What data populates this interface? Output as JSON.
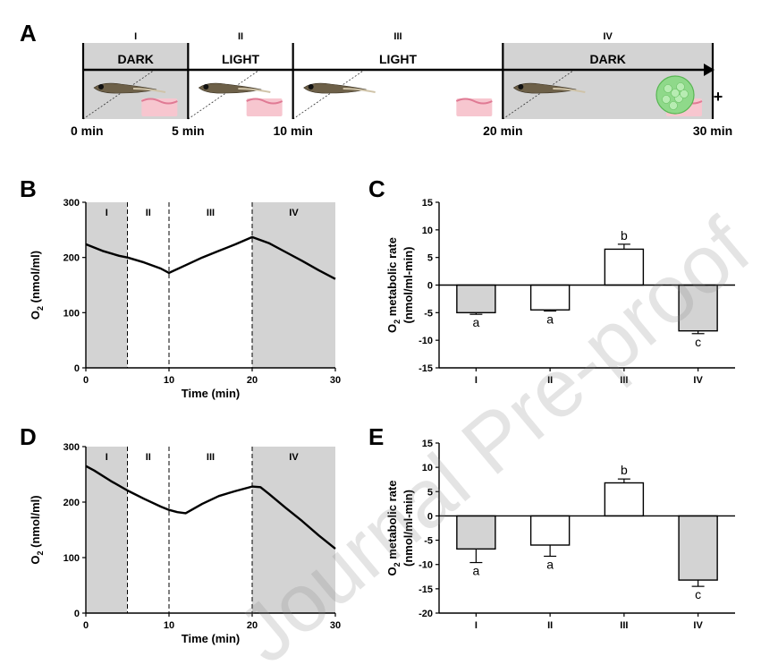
{
  "panel_labels": {
    "A": "A",
    "B": "B",
    "C": "C",
    "D": "D",
    "E": "E"
  },
  "watermark": "Journal Pre-proof",
  "schematic": {
    "phases": [
      {
        "roman": "I",
        "label": "DARK",
        "dark": true,
        "algae": false
      },
      {
        "roman": "II",
        "label": "LIGHT",
        "dark": false,
        "algae": false
      },
      {
        "roman": "III",
        "label": "LIGHT",
        "dark": false,
        "algae": true
      },
      {
        "roman": "IV",
        "label": "DARK",
        "dark": true,
        "algae": true
      }
    ],
    "boundaries_min": [
      0,
      5,
      10,
      20,
      30
    ],
    "time_labels": [
      "0 min",
      "5 min",
      "10 min",
      "20 min",
      "30 min"
    ],
    "plus_sign": "+",
    "icons": [
      "zebrafish-larva-icon",
      "tissue-icon",
      "algae-beads-icon"
    ],
    "colors": {
      "dark_phase": "#d3d3d3",
      "tissue": "#f7c6cf",
      "algae": "#8fd98a"
    }
  },
  "chart_data": [
    {
      "panel": "B",
      "type": "line",
      "xlabel": "Time (min)",
      "ylabel_main": "O",
      "ylabel_sub": "2",
      "ylabel_unit": " (nmol/ml)",
      "xlim": [
        0,
        30
      ],
      "ylim": [
        0,
        300
      ],
      "xticks": [
        0,
        10,
        20,
        30
      ],
      "yticks": [
        0,
        100,
        200,
        300
      ],
      "phase_labels": [
        "I",
        "II",
        "III",
        "IV"
      ],
      "phase_boundaries": [
        5,
        10,
        20
      ],
      "shaded_ranges": [
        [
          0,
          5
        ],
        [
          20,
          30
        ]
      ],
      "x": [
        0,
        2,
        4,
        5,
        7,
        9,
        10,
        12,
        14,
        16,
        18,
        20,
        22,
        24,
        26,
        28,
        30
      ],
      "y": [
        224,
        212,
        203,
        200,
        191,
        180,
        172,
        186,
        200,
        212,
        224,
        237,
        226,
        210,
        194,
        177,
        161
      ]
    },
    {
      "panel": "C",
      "type": "bar",
      "categories": [
        "I",
        "II",
        "III",
        "IV"
      ],
      "values": [
        -5.0,
        -4.5,
        6.5,
        -8.3
      ],
      "errors": [
        0.3,
        0.2,
        0.9,
        0.5
      ],
      "significance": [
        "a",
        "a",
        "b",
        "c"
      ],
      "ylabel_main": "O",
      "ylabel_sub": "2",
      "ylabel_unit": " metabolic rate",
      "ylabel_line2": "(nmol/ml-min)",
      "ylim": [
        -15,
        15
      ],
      "yticks": [
        -15,
        -10,
        -5,
        0,
        5,
        10,
        15
      ],
      "shaded": [
        true,
        false,
        false,
        true
      ]
    },
    {
      "panel": "D",
      "type": "line",
      "xlabel": "Time (min)",
      "ylabel_main": "O",
      "ylabel_sub": "2",
      "ylabel_unit": " (nmol/ml)",
      "xlim": [
        0,
        30
      ],
      "ylim": [
        0,
        300
      ],
      "xticks": [
        0,
        10,
        20,
        30
      ],
      "yticks": [
        0,
        100,
        200,
        300
      ],
      "phase_labels": [
        "I",
        "II",
        "III",
        "IV"
      ],
      "phase_boundaries": [
        5,
        10,
        20
      ],
      "shaded_ranges": [
        [
          0,
          5
        ],
        [
          20,
          30
        ]
      ],
      "x": [
        0,
        1,
        3,
        5,
        7,
        9,
        10,
        11,
        12,
        14,
        16,
        18,
        20,
        21,
        22,
        24,
        26,
        28,
        30
      ],
      "y": [
        265,
        257,
        238,
        221,
        206,
        192,
        186,
        182,
        180,
        197,
        211,
        220,
        228,
        227,
        215,
        190,
        166,
        140,
        116
      ]
    },
    {
      "panel": "E",
      "type": "bar",
      "categories": [
        "I",
        "II",
        "III",
        "IV"
      ],
      "values": [
        -6.8,
        -6.0,
        6.8,
        -13.2
      ],
      "errors": [
        2.8,
        2.3,
        0.8,
        1.3
      ],
      "significance": [
        "a",
        "a",
        "b",
        "c"
      ],
      "ylabel_main": "O",
      "ylabel_sub": "2",
      "ylabel_unit": " metabolic rate",
      "ylabel_line2": "(nmol/ml-min)",
      "ylim": [
        -20,
        15
      ],
      "yticks": [
        -20,
        -15,
        -10,
        -5,
        0,
        5,
        10,
        15
      ],
      "shaded": [
        true,
        false,
        false,
        true
      ]
    }
  ]
}
